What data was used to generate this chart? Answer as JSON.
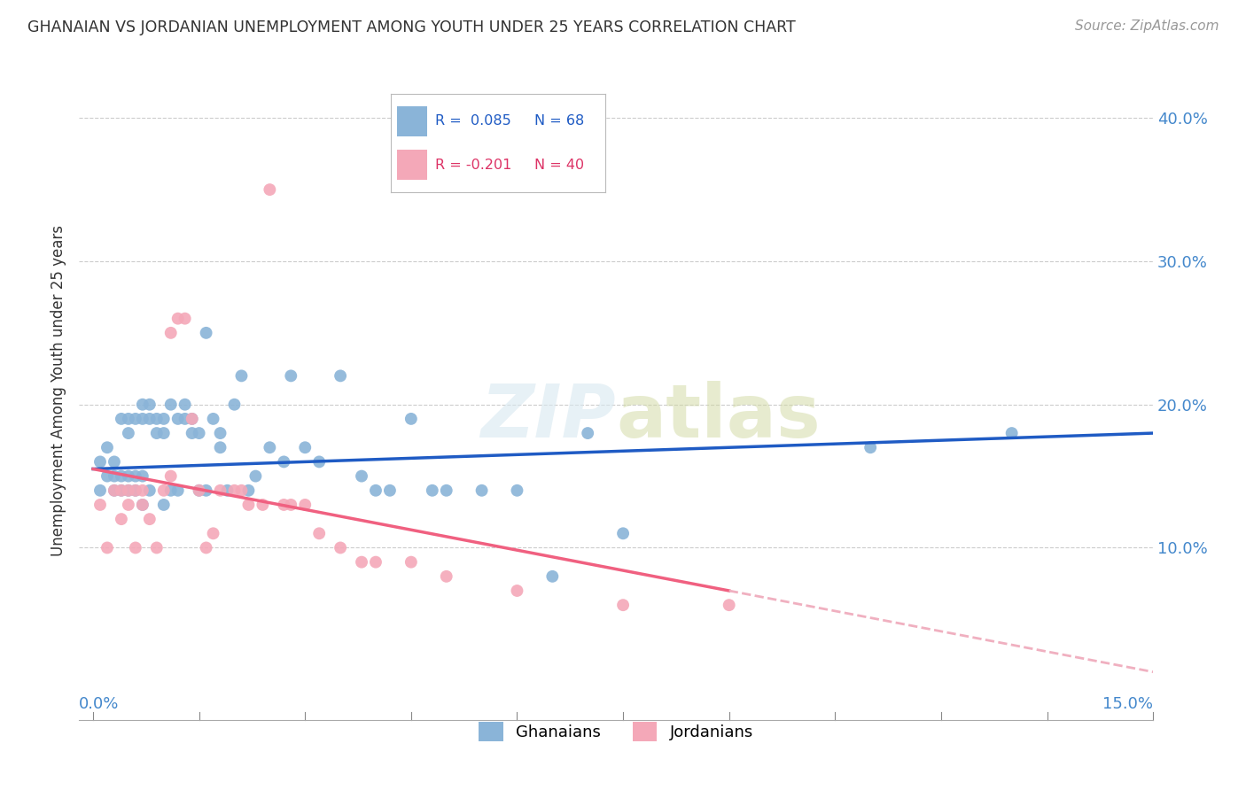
{
  "title": "GHANAIAN VS JORDANIAN UNEMPLOYMENT AMONG YOUTH UNDER 25 YEARS CORRELATION CHART",
  "source": "Source: ZipAtlas.com",
  "ylabel": "Unemployment Among Youth under 25 years",
  "xlim": [
    0.0,
    0.15
  ],
  "ylim": [
    -0.02,
    0.44
  ],
  "yticks": [
    0.1,
    0.2,
    0.3,
    0.4
  ],
  "ytick_labels": [
    "10.0%",
    "20.0%",
    "30.0%",
    "40.0%"
  ],
  "ghanaian_color": "#8ab4d8",
  "jordanian_color": "#f4a8b8",
  "ghanaian_line_color": "#1f5bc4",
  "jordanian_line_color": "#f06080",
  "jordanian_line_dashed_color": "#f0b0c0",
  "ghana_R": 0.085,
  "ghana_N": 68,
  "jordan_R": -0.201,
  "jordan_N": 40,
  "ghana_points_x": [
    0.001,
    0.001,
    0.002,
    0.002,
    0.003,
    0.003,
    0.003,
    0.004,
    0.004,
    0.004,
    0.005,
    0.005,
    0.005,
    0.005,
    0.006,
    0.006,
    0.006,
    0.007,
    0.007,
    0.007,
    0.007,
    0.008,
    0.008,
    0.008,
    0.009,
    0.009,
    0.01,
    0.01,
    0.01,
    0.011,
    0.011,
    0.012,
    0.012,
    0.013,
    0.013,
    0.014,
    0.014,
    0.015,
    0.015,
    0.016,
    0.016,
    0.017,
    0.018,
    0.018,
    0.019,
    0.02,
    0.021,
    0.022,
    0.023,
    0.025,
    0.027,
    0.028,
    0.03,
    0.032,
    0.035,
    0.038,
    0.04,
    0.042,
    0.045,
    0.048,
    0.05,
    0.055,
    0.06,
    0.065,
    0.07,
    0.075,
    0.11,
    0.13
  ],
  "ghana_points_y": [
    0.14,
    0.16,
    0.15,
    0.17,
    0.14,
    0.15,
    0.16,
    0.14,
    0.15,
    0.19,
    0.14,
    0.15,
    0.18,
    0.19,
    0.14,
    0.15,
    0.19,
    0.13,
    0.15,
    0.19,
    0.2,
    0.14,
    0.19,
    0.2,
    0.18,
    0.19,
    0.13,
    0.18,
    0.19,
    0.14,
    0.2,
    0.14,
    0.19,
    0.19,
    0.2,
    0.18,
    0.19,
    0.14,
    0.18,
    0.14,
    0.25,
    0.19,
    0.17,
    0.18,
    0.14,
    0.2,
    0.22,
    0.14,
    0.15,
    0.17,
    0.16,
    0.22,
    0.17,
    0.16,
    0.22,
    0.15,
    0.14,
    0.14,
    0.19,
    0.14,
    0.14,
    0.14,
    0.14,
    0.08,
    0.18,
    0.11,
    0.17,
    0.18
  ],
  "jordan_points_x": [
    0.001,
    0.002,
    0.003,
    0.004,
    0.004,
    0.005,
    0.005,
    0.006,
    0.006,
    0.007,
    0.007,
    0.008,
    0.009,
    0.01,
    0.011,
    0.011,
    0.012,
    0.013,
    0.014,
    0.015,
    0.016,
    0.017,
    0.018,
    0.02,
    0.021,
    0.022,
    0.024,
    0.025,
    0.027,
    0.028,
    0.03,
    0.032,
    0.035,
    0.038,
    0.04,
    0.045,
    0.05,
    0.06,
    0.075,
    0.09
  ],
  "jordan_points_y": [
    0.13,
    0.1,
    0.14,
    0.12,
    0.14,
    0.13,
    0.14,
    0.1,
    0.14,
    0.13,
    0.14,
    0.12,
    0.1,
    0.14,
    0.15,
    0.25,
    0.26,
    0.26,
    0.19,
    0.14,
    0.1,
    0.11,
    0.14,
    0.14,
    0.14,
    0.13,
    0.13,
    0.35,
    0.13,
    0.13,
    0.13,
    0.11,
    0.1,
    0.09,
    0.09,
    0.09,
    0.08,
    0.07,
    0.06,
    0.06
  ],
  "background_color": "#ffffff",
  "grid_color": "#cccccc"
}
